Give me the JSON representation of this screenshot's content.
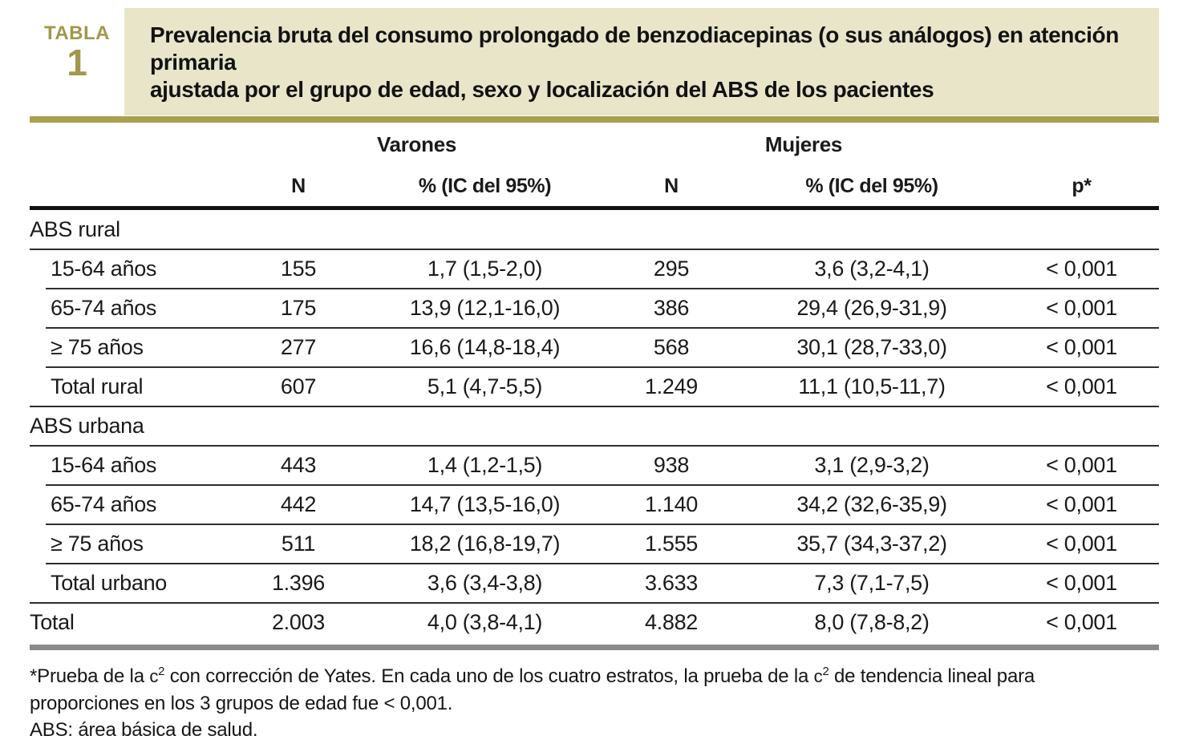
{
  "badge": {
    "word": "TABLA",
    "number": "1"
  },
  "title": {
    "line1": "Prevalencia bruta del consumo prolongado de benzodiacepinas (o sus análogos) en atención primaria",
    "line2": "ajustada por el grupo de edad, sexo y localización del ABS de los pacientes"
  },
  "colors": {
    "accent_olive": "#a9a050",
    "title_background": "#e9e5c9",
    "badge_gold": "#a3974a",
    "bottom_bar_gray": "#8a8a8a"
  },
  "header": {
    "group_varones": "Varones",
    "group_mujeres": "Mujeres",
    "col_n_varones": "N",
    "col_ci_varones": "% (IC del 95%)",
    "col_n_mujeres": "N",
    "col_ci_mujeres": "% (IC del 95%)",
    "col_p": "p*"
  },
  "rows": [
    {
      "type": "section",
      "label": "ABS rural",
      "n1": "",
      "ci1": "",
      "n2": "",
      "ci2": "",
      "p": ""
    },
    {
      "type": "sub",
      "label": "15-64 años",
      "n1": "155",
      "ci1": "1,7 (1,5-2,0)",
      "n2": "295",
      "ci2": "3,6 (3,2-4,1)",
      "p": "< 0,001"
    },
    {
      "type": "sub",
      "label": "65-74 años",
      "n1": "175",
      "ci1": "13,9 (12,1-16,0)",
      "n2": "386",
      "ci2": "29,4 (26,9-31,9)",
      "p": "< 0,001"
    },
    {
      "type": "sub",
      "label": "≥ 75 años",
      "n1": "277",
      "ci1": "16,6 (14,8-18,4)",
      "n2": "568",
      "ci2": "30,1 (28,7-33,0)",
      "p": "< 0,001"
    },
    {
      "type": "sub-full",
      "label": "Total rural",
      "n1": "607",
      "ci1": "5,1 (4,7-5,5)",
      "n2": "1.249",
      "ci2": "11,1 (10,5-11,7)",
      "p": "< 0,001"
    },
    {
      "type": "section",
      "label": "ABS urbana",
      "n1": "",
      "ci1": "",
      "n2": "",
      "ci2": "",
      "p": ""
    },
    {
      "type": "sub",
      "label": "15-64 años",
      "n1": "443",
      "ci1": "1,4 (1,2-1,5)",
      "n2": "938",
      "ci2": "3,1 (2,9-3,2)",
      "p": "< 0,001"
    },
    {
      "type": "sub",
      "label": "65-74 años",
      "n1": "442",
      "ci1": "14,7 (13,5-16,0)",
      "n2": "1.140",
      "ci2": "34,2 (32,6-35,9)",
      "p": "< 0,001"
    },
    {
      "type": "sub",
      "label": "≥ 75 años",
      "n1": "511",
      "ci1": "18,2 (16,8-19,7)",
      "n2": "1.555",
      "ci2": "35,7 (34,3-37,2)",
      "p": "< 0,001"
    },
    {
      "type": "sub-full",
      "label": "Total urbano",
      "n1": "1.396",
      "ci1": "3,6 (3,4-3,8)",
      "n2": "3.633",
      "ci2": "7,3 (7,1-7,5)",
      "p": "< 0,001"
    },
    {
      "type": "total",
      "label": "Total",
      "n1": "2.003",
      "ci1": "4,0 (3,8-4,1)",
      "n2": "4.882",
      "ci2": "8,0 (7,8-8,2)",
      "p": "< 0,001"
    }
  ],
  "footnotes": {
    "chi": "c",
    "chi_sup": "2",
    "f1_seg1": "*Prueba de la ",
    "f1_seg2": " con corrección de Yates. En cada uno de los cuatro estratos, la prueba de la ",
    "f1_seg3": " de tendencia lineal para",
    "f1_line2": "proporciones en los 3 grupos de edad fue < 0,001.",
    "f2": "ABS: área básica de salud."
  }
}
